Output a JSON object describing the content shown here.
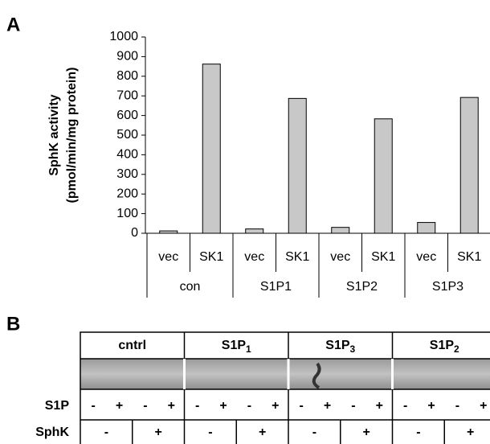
{
  "panel_a": "A",
  "chart_data": {
    "type": "bar",
    "ylabel": [
      "SphK activity",
      "(pmol/min/mg protein)"
    ],
    "categories": [
      "vec",
      "SK1",
      "vec",
      "SK1",
      "vec",
      "SK1",
      "vec",
      "SK1"
    ],
    "groups": [
      "con",
      "S1P1",
      "S1P2",
      "S1P3"
    ],
    "values": [
      12,
      862,
      22,
      687,
      30,
      583,
      55,
      692
    ],
    "color": "#c8c8c8",
    "ylim": [
      0,
      1000
    ],
    "yticks": [
      0,
      100,
      200,
      300,
      400,
      500,
      600,
      700,
      800,
      900,
      1000
    ],
    "grid": false
  },
  "panel_b": "B",
  "blot": {
    "columns": [
      {
        "text": "cntrl"
      },
      {
        "text": "S1P",
        "sub": "1"
      },
      {
        "text": "S1P",
        "sub": "3"
      },
      {
        "text": "S1P",
        "sub": "2"
      }
    ],
    "rows": [
      {
        "label": "S1P",
        "cells": [
          "-",
          "+",
          "-",
          "+",
          "-",
          "+",
          "-",
          "+",
          "-",
          "+",
          "-",
          "+",
          "-",
          "+",
          "-",
          "+"
        ]
      },
      {
        "label": "SphK",
        "cells": [
          "-",
          "+",
          "-",
          "+",
          "-",
          "+",
          "-",
          "+"
        ]
      }
    ]
  }
}
